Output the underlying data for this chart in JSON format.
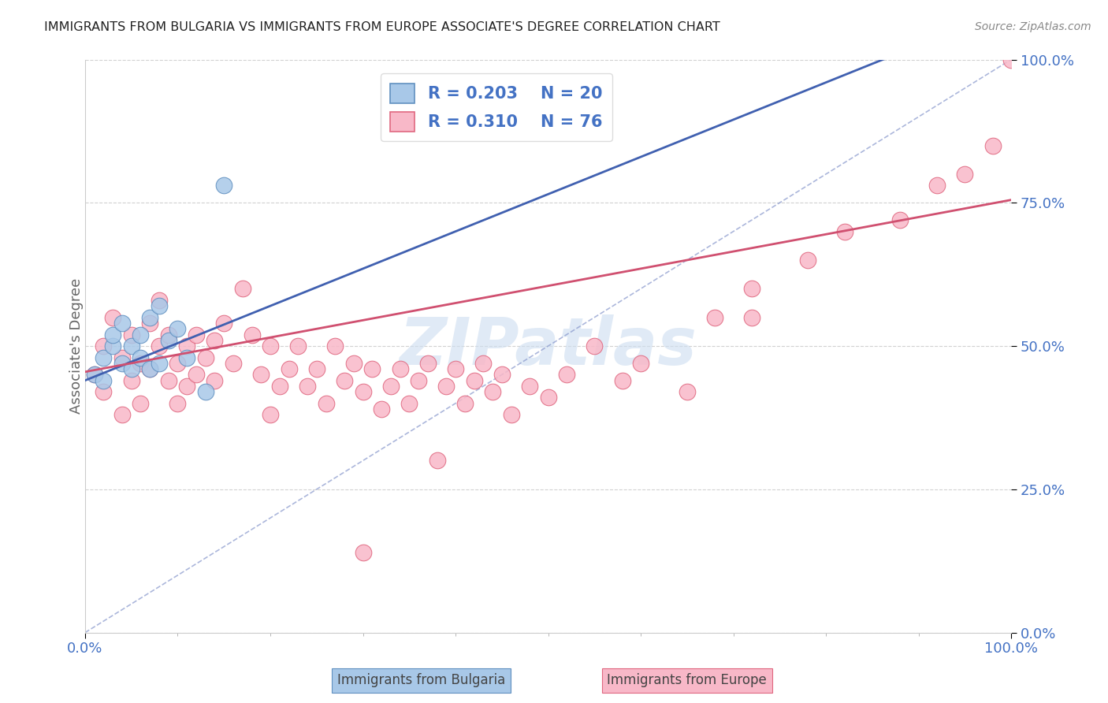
{
  "title": "IMMIGRANTS FROM BULGARIA VS IMMIGRANTS FROM EUROPE ASSOCIATE'S DEGREE CORRELATION CHART",
  "source": "Source: ZipAtlas.com",
  "ylabel": "Associate's Degree",
  "legend_bulgaria_R": "0.203",
  "legend_bulgaria_N": "20",
  "legend_europe_R": "0.310",
  "legend_europe_N": "76",
  "color_bulgaria_fill": "#a8c8e8",
  "color_bulgaria_edge": "#6090c0",
  "color_europe_fill": "#f8b8c8",
  "color_europe_edge": "#e06880",
  "color_trendline_bulgaria": "#4060b0",
  "color_trendline_europe": "#d05070",
  "color_diagonal": "#8898cc",
  "color_grid": "#cccccc",
  "color_tick": "#4472c4",
  "color_ylabel": "#666666",
  "color_legend_text": "#4472c4",
  "watermark_text": "ZIPatlas",
  "watermark_color": "#ccddf0",
  "bulgaria_x": [
    0.01,
    0.02,
    0.02,
    0.03,
    0.03,
    0.04,
    0.04,
    0.05,
    0.05,
    0.06,
    0.06,
    0.07,
    0.07,
    0.08,
    0.08,
    0.09,
    0.1,
    0.11,
    0.13,
    0.15
  ],
  "bulgaria_y": [
    0.45,
    0.44,
    0.48,
    0.5,
    0.52,
    0.47,
    0.54,
    0.5,
    0.46,
    0.52,
    0.48,
    0.55,
    0.46,
    0.57,
    0.47,
    0.51,
    0.53,
    0.48,
    0.42,
    0.78
  ],
  "europe_x": [
    0.01,
    0.02,
    0.02,
    0.03,
    0.04,
    0.04,
    0.05,
    0.05,
    0.06,
    0.06,
    0.07,
    0.07,
    0.08,
    0.08,
    0.09,
    0.09,
    0.1,
    0.1,
    0.11,
    0.11,
    0.12,
    0.12,
    0.13,
    0.14,
    0.14,
    0.15,
    0.16,
    0.17,
    0.18,
    0.19,
    0.2,
    0.2,
    0.21,
    0.22,
    0.23,
    0.24,
    0.25,
    0.26,
    0.27,
    0.28,
    0.29,
    0.3,
    0.31,
    0.32,
    0.33,
    0.34,
    0.35,
    0.36,
    0.37,
    0.38,
    0.39,
    0.4,
    0.41,
    0.42,
    0.43,
    0.44,
    0.45,
    0.46,
    0.48,
    0.5,
    0.52,
    0.55,
    0.58,
    0.6,
    0.65,
    0.68,
    0.72,
    0.78,
    0.82,
    0.88,
    0.92,
    0.95,
    0.98,
    1.0,
    0.3,
    0.72
  ],
  "europe_y": [
    0.45,
    0.5,
    0.42,
    0.55,
    0.48,
    0.38,
    0.52,
    0.44,
    0.47,
    0.4,
    0.54,
    0.46,
    0.58,
    0.5,
    0.52,
    0.44,
    0.47,
    0.4,
    0.5,
    0.43,
    0.52,
    0.45,
    0.48,
    0.51,
    0.44,
    0.54,
    0.47,
    0.6,
    0.52,
    0.45,
    0.38,
    0.5,
    0.43,
    0.46,
    0.5,
    0.43,
    0.46,
    0.4,
    0.5,
    0.44,
    0.47,
    0.42,
    0.46,
    0.39,
    0.43,
    0.46,
    0.4,
    0.44,
    0.47,
    0.3,
    0.43,
    0.46,
    0.4,
    0.44,
    0.47,
    0.42,
    0.45,
    0.38,
    0.43,
    0.41,
    0.45,
    0.5,
    0.44,
    0.47,
    0.42,
    0.55,
    0.6,
    0.65,
    0.7,
    0.72,
    0.78,
    0.8,
    0.85,
    1.0,
    0.14,
    0.55
  ],
  "trendline_bulgaria_slope": 0.65,
  "trendline_bulgaria_intercept": 0.44,
  "trendline_europe_slope": 0.3,
  "trendline_europe_intercept": 0.455,
  "xlim": [
    0.0,
    1.0
  ],
  "ylim": [
    0.0,
    1.0
  ],
  "yticks": [
    0.0,
    0.25,
    0.5,
    0.75,
    1.0
  ],
  "ytick_labels": [
    "0.0%",
    "25.0%",
    "50.0%",
    "75.0%",
    "100.0%"
  ],
  "xtick_labels": [
    "0.0%",
    "100.0%"
  ]
}
